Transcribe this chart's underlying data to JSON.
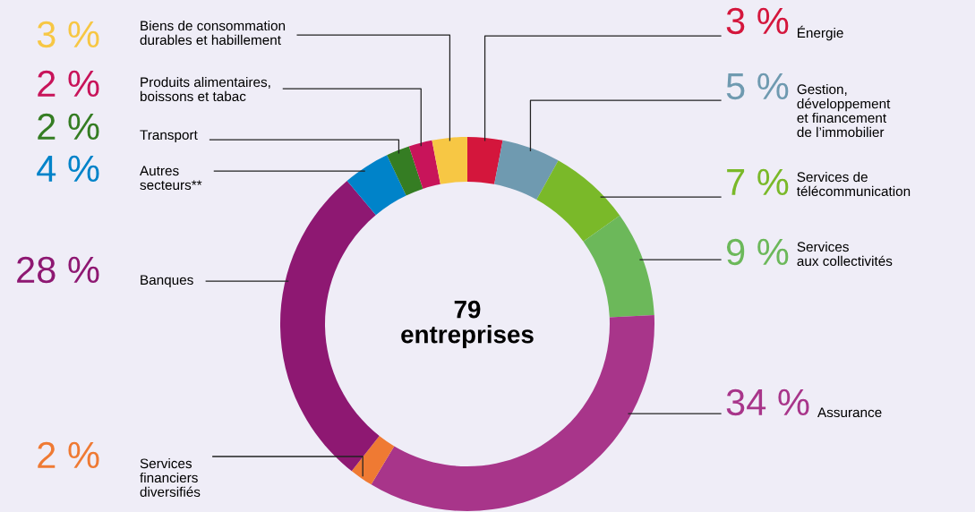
{
  "chart_data": {
    "type": "donut",
    "categories": [
      "Énergie",
      "Gestion,\ndéveloppement\net financement\nde l’immobilier",
      "Services de\ntélécommunication",
      "Services\naux collectivités",
      "Assurance",
      "Services\nfinanciers\ndiversifiés",
      "Banques",
      "Autres\nsecteurs**",
      "Transport",
      "Produits alimentaires,\nboissons et tabac",
      "Biens de consommation\ndurables et habillement"
    ],
    "values": [
      3,
      5,
      7,
      9,
      34,
      2,
      28,
      4,
      2,
      2,
      3
    ],
    "value_labels": [
      "3 %",
      "5 %",
      "7 %",
      "9 %",
      "34 %",
      "2 %",
      "28 %",
      "4 %",
      "2 %",
      "2 %",
      "3 %"
    ],
    "colors": [
      "#d4163c",
      "#6f9ab0",
      "#7ab929",
      "#6cb85a",
      "#a8358a",
      "#ef7a33",
      "#8e1872",
      "#0083c9",
      "#357d23",
      "#c8145a",
      "#f7c744"
    ],
    "annotations": [
      "79\nentreprises"
    ],
    "legend": false
  }
}
